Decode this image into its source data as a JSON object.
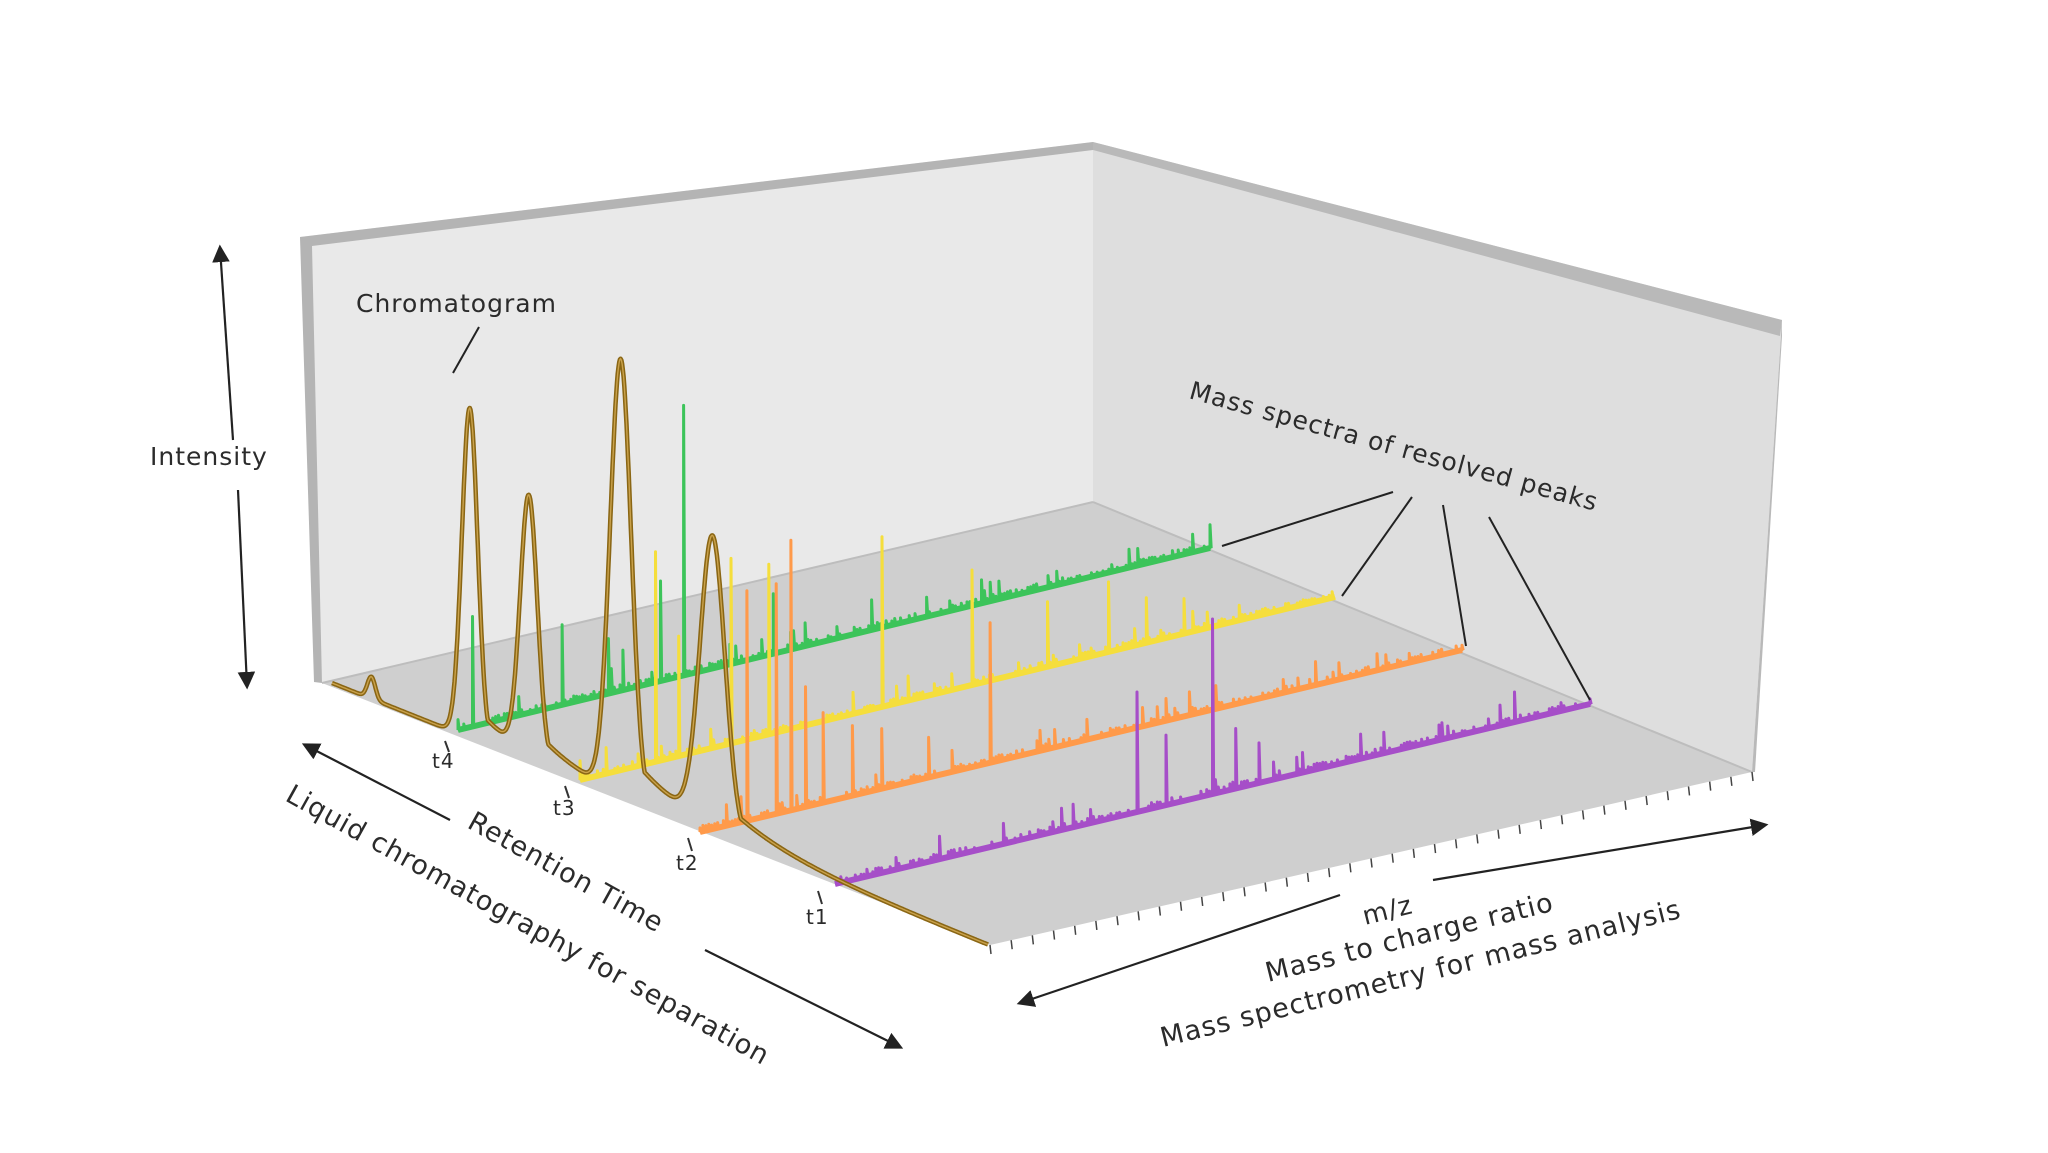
{
  "labels": {
    "intensity": "Intensity",
    "chromatogram": "Chromatogram",
    "mass_spectra": "Mass spectra of resolved peaks",
    "retention_time": "Retention Time",
    "lc_separation": "Liquid chromatography for separation",
    "mz": "m/z",
    "mass_to_charge": "Mass to charge ratio",
    "ms_analysis": "Mass spectrometry for mass analysis"
  },
  "time_ticks": [
    "t1",
    "t2",
    "t3",
    "t4"
  ],
  "colors": {
    "chromatogram": "#8a6614",
    "spectrum_t4": "#3cc45a",
    "spectrum_t3": "#f5de3c",
    "spectrum_t2": "#ff9a4a",
    "spectrum_t1": "#a64ec8",
    "floor": "#cfcfcf",
    "back_wall": "#e9e9e9",
    "side_wall": "#dddddd"
  },
  "spectra": [
    {
      "name": "t4",
      "color_key": "spectrum_t4"
    },
    {
      "name": "t3",
      "color_key": "spectrum_t3"
    },
    {
      "name": "t2",
      "color_key": "spectrum_t2"
    },
    {
      "name": "t1",
      "color_key": "spectrum_t1"
    }
  ]
}
